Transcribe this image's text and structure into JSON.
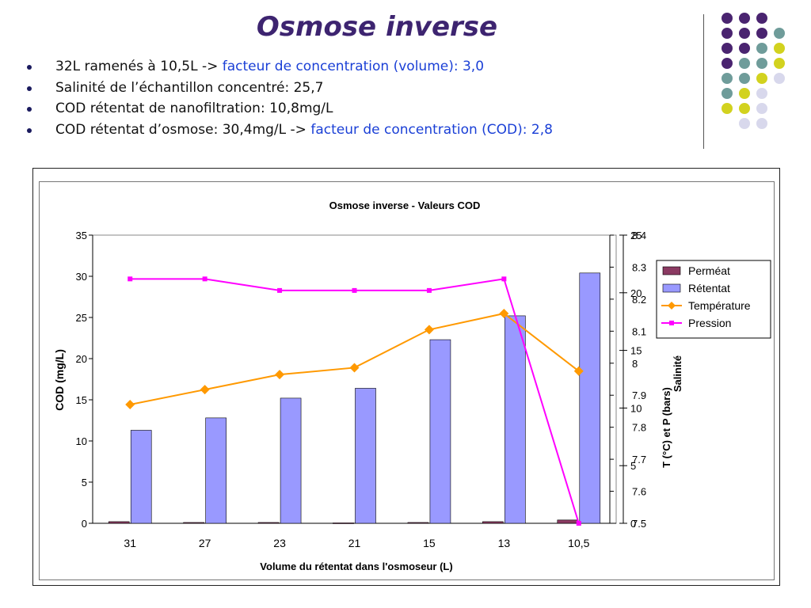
{
  "slide": {
    "title": "Osmose inverse",
    "bullets": [
      {
        "text": "32L ramenés à 10,5L -> ",
        "highlight": "facteur de concentration (volume): 3,0"
      },
      {
        "text": "Salinité de l’échantillon concentré: 25,7",
        "highlight": ""
      },
      {
        "text": "COD rétentat de nanofiltration: 10,8mg/L",
        "highlight": ""
      },
      {
        "text": "COD rétentat d’osmose: 30,4mg/L  -> ",
        "highlight": "facteur de concentration (COD): 2,8"
      }
    ]
  },
  "colors": {
    "title": "#3d2470",
    "highlight": "#1a3fd6",
    "permeat": "#8b3a62",
    "retentat": "#9999ff",
    "temperature": "#ff9900",
    "pression": "#ff00ff",
    "deco_purple": "#4a2470",
    "deco_teal": "#6f9c9a",
    "deco_yellow": "#d2d21f",
    "deco_lavender": "#d8d8ec"
  },
  "chart_data": {
    "type": "bar",
    "title": "Osmose inverse - Valeurs COD",
    "xlabel": "Volume du rétentat dans l'osmoseur (L)",
    "ylabel": "COD (mg/L)",
    "y2label": "T (°C) et P (bars)",
    "y3label": "Salinité",
    "categories": [
      "31",
      "27",
      "23",
      "21",
      "15",
      "13",
      "10,5"
    ],
    "ylim": [
      0,
      35
    ],
    "y2lim": [
      0,
      25
    ],
    "y3lim": [
      7.5,
      8.4
    ],
    "left_ticks": [
      "0",
      "5",
      "10",
      "15",
      "20",
      "25",
      "30",
      "35"
    ],
    "right_ticks": [
      "0",
      "5",
      "10",
      "15",
      "20",
      "25"
    ],
    "mid_ticks": [
      "7.5",
      "7.6",
      "7.7",
      "7.8",
      "7.9",
      "8",
      "8.1",
      "8.2",
      "8.3",
      "8.4"
    ],
    "legend_position": "top-right",
    "series": [
      {
        "name": "Perméat",
        "kind": "bar",
        "axis": "left",
        "values": [
          0.2,
          0.1,
          0.1,
          0.05,
          0.1,
          0.2,
          0.4
        ]
      },
      {
        "name": "Rétentat",
        "kind": "bar",
        "axis": "left",
        "values": [
          11.3,
          12.8,
          15.2,
          16.4,
          22.3,
          25.2,
          30.4
        ]
      },
      {
        "name": "Température",
        "kind": "line",
        "axis": "right",
        "values": [
          10.3,
          11.6,
          12.9,
          13.5,
          16.8,
          18.2,
          13.2
        ]
      },
      {
        "name": "Pression",
        "kind": "line",
        "axis": "right",
        "values": [
          21.2,
          21.2,
          20.2,
          20.2,
          20.2,
          21.2,
          0
        ]
      }
    ]
  }
}
